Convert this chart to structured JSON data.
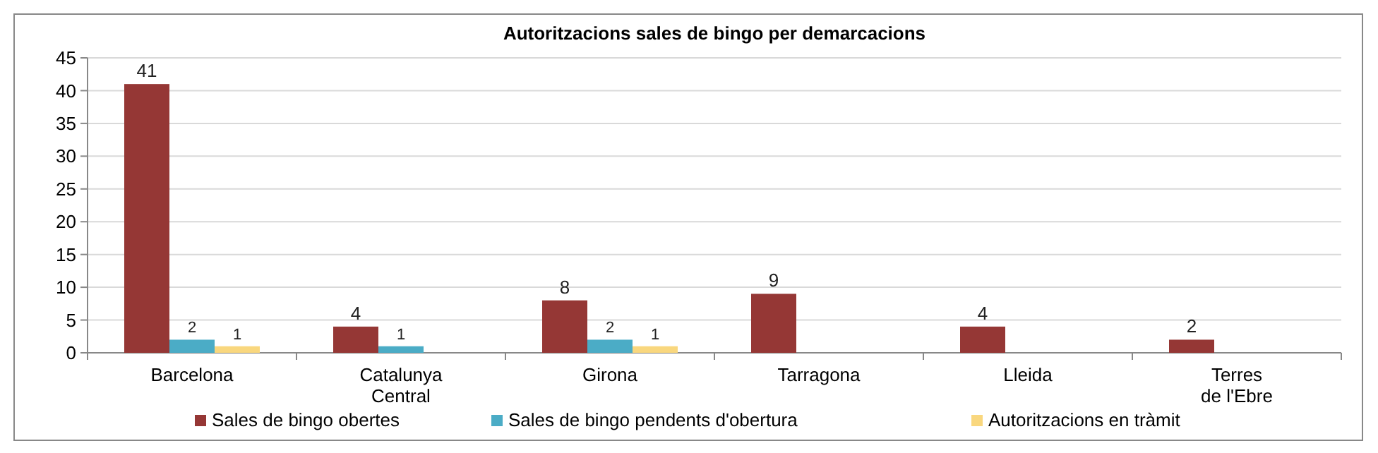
{
  "chart_data": {
    "type": "bar",
    "title": "Autoritzacions sales de bingo per demarcacions",
    "categories": [
      "Barcelona",
      "Catalunya Central",
      "Girona",
      "Tarragona",
      "Lleida",
      "Terres de l'Ebre"
    ],
    "series": [
      {
        "name": "Sales de bingo obertes",
        "color": "#953735",
        "values": [
          41,
          4,
          8,
          9,
          4,
          2
        ]
      },
      {
        "name": "Sales de bingo pendents d'obertura",
        "color": "#4bacc6",
        "values": [
          2,
          1,
          2,
          null,
          null,
          null
        ]
      },
      {
        "name": "Autoritzacions en tràmit",
        "color": "#f9d77e",
        "values": [
          1,
          null,
          1,
          null,
          null,
          null
        ]
      }
    ],
    "ylim": [
      0,
      45
    ],
    "yticks": [
      0,
      5,
      10,
      15,
      20,
      25,
      30,
      35,
      40,
      45
    ],
    "grid": "y",
    "legend": "bottom",
    "data_labels": true
  }
}
